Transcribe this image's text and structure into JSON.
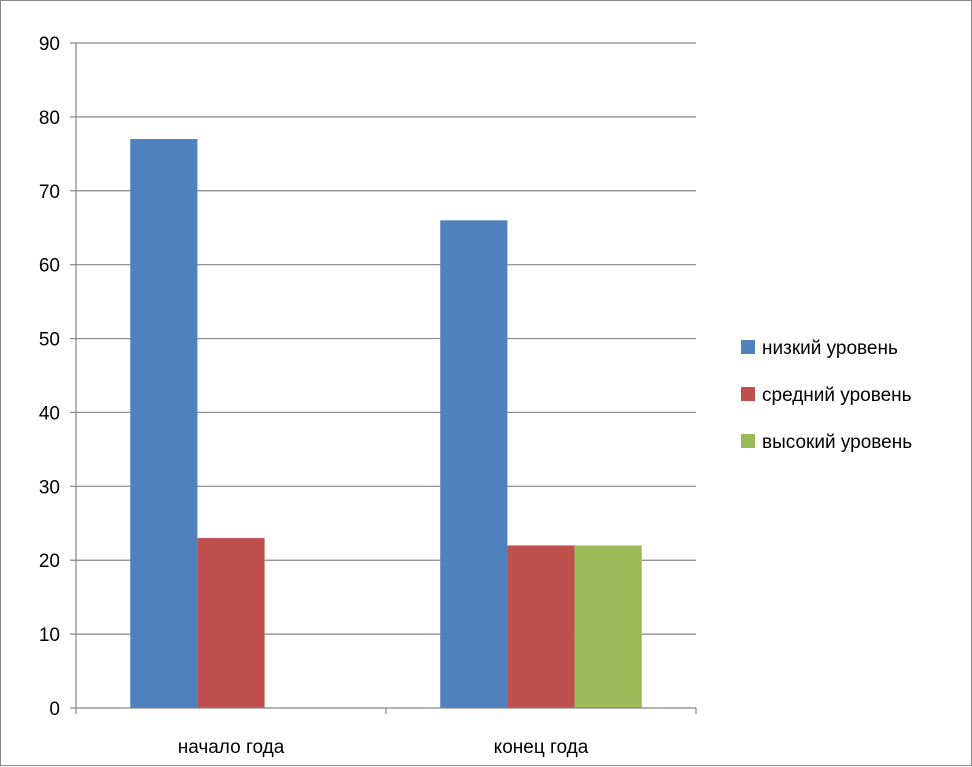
{
  "chart_data": {
    "type": "bar",
    "title": "",
    "xlabel": "",
    "ylabel": "",
    "categories": [
      "начало года",
      "конец года"
    ],
    "series": [
      {
        "name": "низкий уровень",
        "values": [
          77,
          66
        ],
        "color": "#4F81BD"
      },
      {
        "name": "средний уровень",
        "values": [
          23,
          22
        ],
        "color": "#C0504D"
      },
      {
        "name": "высокий уровень",
        "values": [
          null,
          22
        ],
        "color": "#9BBB59"
      }
    ],
    "ylim": [
      0,
      90
    ],
    "yticks": [
      "0",
      "10",
      "20",
      "30",
      "40",
      "50",
      "60",
      "70",
      "80",
      "90"
    ],
    "grid": true,
    "legend_position": "right"
  }
}
